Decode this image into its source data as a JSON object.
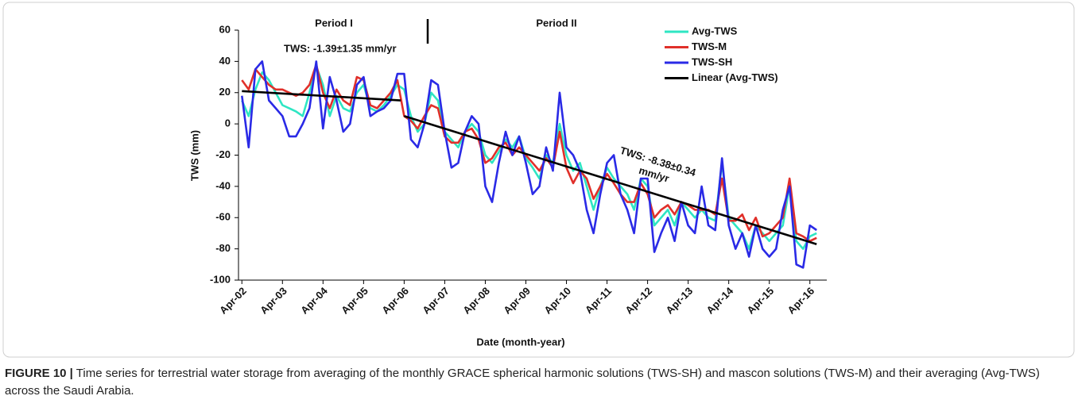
{
  "chart_data": {
    "type": "line",
    "title_annotations": [
      "Period I",
      "Period II",
      "TWS: -1.39±1.35  mm/yr",
      "TWS: -8.38±0.34",
      "mm/yr"
    ],
    "xlabel": "Date (month-year)",
    "ylabel": "TWS (mm)",
    "x": [
      "2002-04",
      "2002-06",
      "2002-08",
      "2002-10",
      "2002-12",
      "2003-02",
      "2003-04",
      "2003-06",
      "2003-08",
      "2003-10",
      "2003-12",
      "2004-02",
      "2004-04",
      "2004-06",
      "2004-08",
      "2004-10",
      "2004-12",
      "2005-02",
      "2005-04",
      "2005-06",
      "2005-08",
      "2005-10",
      "2005-12",
      "2006-02",
      "2006-04",
      "2006-06",
      "2006-08",
      "2006-10",
      "2006-12",
      "2007-02",
      "2007-04",
      "2007-06",
      "2007-08",
      "2007-10",
      "2007-12",
      "2008-02",
      "2008-04",
      "2008-06",
      "2008-08",
      "2008-10",
      "2008-12",
      "2009-02",
      "2009-04",
      "2009-06",
      "2009-08",
      "2009-10",
      "2009-12",
      "2010-02",
      "2010-04",
      "2010-06",
      "2010-08",
      "2010-10",
      "2010-12",
      "2011-02",
      "2011-04",
      "2011-06",
      "2011-08",
      "2011-10",
      "2011-12",
      "2012-02",
      "2012-04",
      "2012-06",
      "2012-08",
      "2012-10",
      "2012-12",
      "2013-02",
      "2013-04",
      "2013-06",
      "2013-08",
      "2013-10",
      "2013-12",
      "2014-02",
      "2014-04",
      "2014-06",
      "2014-08",
      "2014-10",
      "2014-12",
      "2015-02",
      "2015-04",
      "2015-06",
      "2015-08",
      "2015-10",
      "2015-12",
      "2016-02",
      "2016-04",
      "2016-06"
    ],
    "series": [
      {
        "name": "Avg-TWS",
        "color": "#2ee6c3",
        "values": [
          15,
          5,
          22,
          33,
          28,
          20,
          12,
          10,
          8,
          5,
          20,
          37,
          25,
          5,
          18,
          10,
          8,
          20,
          25,
          10,
          8,
          12,
          18,
          25,
          22,
          5,
          -5,
          0,
          20,
          15,
          -5,
          -10,
          -15,
          -5,
          0,
          -5,
          -20,
          -25,
          -18,
          -10,
          -15,
          -8,
          -22,
          -28,
          -35,
          -20,
          -25,
          0,
          -20,
          -30,
          -25,
          -40,
          -55,
          -40,
          -28,
          -35,
          -40,
          -45,
          -55,
          -35,
          -40,
          -65,
          -60,
          -55,
          -65,
          -50,
          -55,
          -60,
          -55,
          -60,
          -62,
          -25,
          -60,
          -65,
          -70,
          -80,
          -65,
          -70,
          -75,
          -70,
          -65,
          -40,
          -75,
          -80,
          -72,
          -70
        ]
      },
      {
        "name": "TWS-M",
        "color": "#e0302a",
        "values": [
          28,
          22,
          35,
          30,
          25,
          22,
          22,
          20,
          18,
          20,
          25,
          38,
          20,
          10,
          22,
          15,
          12,
          30,
          28,
          12,
          10,
          15,
          20,
          28,
          5,
          2,
          -3,
          5,
          12,
          10,
          -8,
          -12,
          -12,
          -5,
          -3,
          -10,
          -25,
          -22,
          -15,
          -12,
          -20,
          -15,
          -20,
          -25,
          -30,
          -22,
          -28,
          -5,
          -28,
          -38,
          -30,
          -35,
          -48,
          -40,
          -32,
          -38,
          -45,
          -50,
          -50,
          -38,
          -45,
          -60,
          -55,
          -52,
          -58,
          -50,
          -52,
          -55,
          -55,
          -55,
          -58,
          -35,
          -62,
          -62,
          -58,
          -68,
          -60,
          -72,
          -70,
          -65,
          -60,
          -35,
          -70,
          -72,
          -75,
          -73
        ]
      },
      {
        "name": "TWS-SH",
        "color": "#2a2ae6",
        "values": [
          18,
          -15,
          35,
          40,
          15,
          10,
          5,
          -8,
          -8,
          0,
          10,
          40,
          -3,
          30,
          15,
          -5,
          0,
          25,
          30,
          5,
          8,
          10,
          15,
          32,
          32,
          -10,
          -15,
          0,
          28,
          25,
          -5,
          -28,
          -25,
          -5,
          5,
          0,
          -40,
          -50,
          -25,
          -5,
          -20,
          -8,
          -25,
          -45,
          -40,
          -15,
          -30,
          20,
          -15,
          -20,
          -30,
          -55,
          -70,
          -45,
          -25,
          -20,
          -45,
          -55,
          -70,
          -35,
          -35,
          -82,
          -70,
          -60,
          -75,
          -50,
          -65,
          -70,
          -40,
          -65,
          -68,
          -22,
          -65,
          -80,
          -70,
          -85,
          -65,
          -80,
          -85,
          -80,
          -55,
          -40,
          -90,
          -92,
          -65,
          -68
        ]
      },
      {
        "name": "Linear (Avg-TWS)",
        "color": "#000000",
        "x": [
          "2002-04",
          "2006-03",
          "2006-04",
          "2006-04",
          "2016-06"
        ],
        "values": [
          21,
          15,
          null,
          5,
          -77
        ]
      }
    ],
    "xlim": [
      "2002-03",
      "2016-09"
    ],
    "xticks": [
      {
        "value": "2002-04",
        "label": "Apr-02"
      },
      {
        "value": "2003-04",
        "label": "Apr-03"
      },
      {
        "value": "2004-04",
        "label": "Apr-04"
      },
      {
        "value": "2005-04",
        "label": "Apr-05"
      },
      {
        "value": "2006-04",
        "label": "Apr-06"
      },
      {
        "value": "2007-04",
        "label": "Apr-07"
      },
      {
        "value": "2008-04",
        "label": "Apr-08"
      },
      {
        "value": "2009-04",
        "label": "Apr-09"
      },
      {
        "value": "2010-04",
        "label": "Apr-10"
      },
      {
        "value": "2011-04",
        "label": "Apr-11"
      },
      {
        "value": "2012-04",
        "label": "Apr-12"
      },
      {
        "value": "2013-04",
        "label": "Apr-13"
      },
      {
        "value": "2014-04",
        "label": "Apr-14"
      },
      {
        "value": "2015-04",
        "label": "Apr-15"
      },
      {
        "value": "2016-04",
        "label": "Apr-16"
      }
    ],
    "ylim": [
      -100,
      60
    ],
    "yticks": [
      -100,
      -80,
      -60,
      -40,
      -20,
      0,
      20,
      40,
      60
    ],
    "grid": false,
    "legend": "upper right"
  },
  "caption": {
    "label": "FIGURE 10 |",
    "text": "Time series for terrestrial water storage from averaging of the monthly GRACE spherical harmonic solutions (TWS-SH) and mascon solutions (TWS-M) and their averaging (Avg-TWS) across the Saudi Arabia."
  }
}
